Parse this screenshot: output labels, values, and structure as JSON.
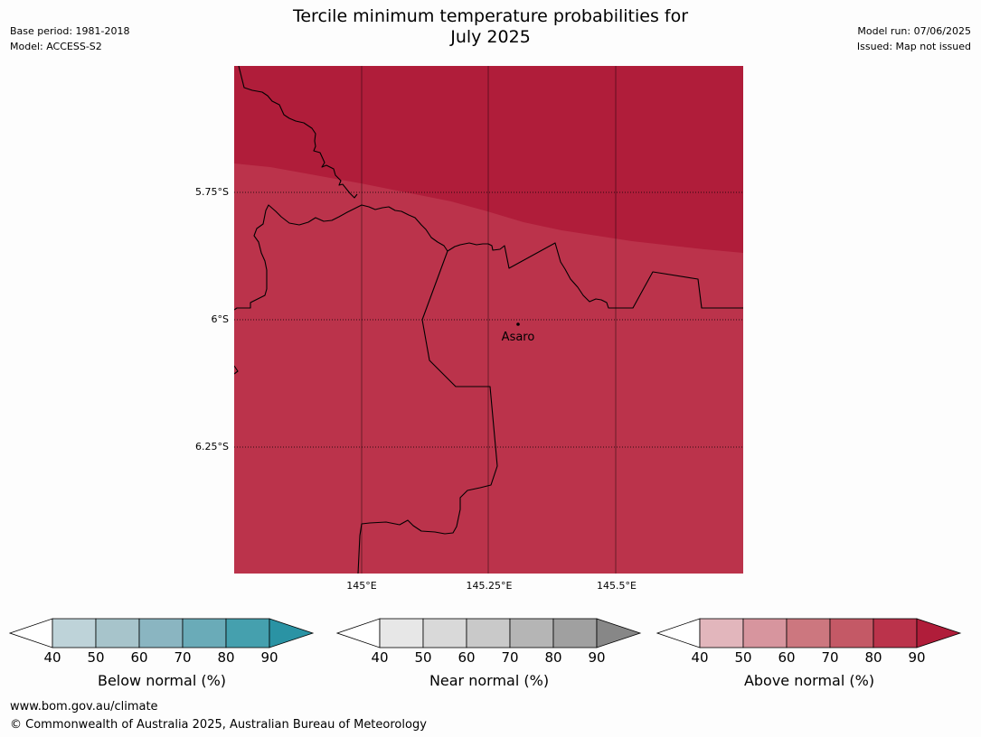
{
  "title": [
    "Tercile minimum temperature probabilities for",
    "July 2025"
  ],
  "meta_left": [
    "Base period: 1981-2018",
    "Model: ACCESS-S2"
  ],
  "meta_right": [
    "Model run: 07/06/2025",
    "Issued: Map not issued"
  ],
  "map": {
    "lat_ticks": [
      "5.75°S",
      "6°S",
      "6.25°S"
    ],
    "lon_ticks": [
      "145°E",
      "145.25°E",
      "145.5°E"
    ],
    "place": "Asaro",
    "colors": {
      "above_80_90": "#b01d3a",
      "above_70_80": "#bb334b",
      "border": "#000000"
    }
  },
  "colorbars": [
    {
      "label": "Below normal (%)",
      "ticks": [
        "40",
        "50",
        "60",
        "70",
        "80",
        "90"
      ],
      "colors": [
        "#bed3d9",
        "#a7c4cb",
        "#8ab5c1",
        "#6aabb8",
        "#45a0ae"
      ],
      "over_color": "#2a93a4"
    },
    {
      "label": "Near normal (%)",
      "ticks": [
        "40",
        "50",
        "60",
        "70",
        "80",
        "90"
      ],
      "colors": [
        "#e7e7e7",
        "#d9d9d9",
        "#c9c9c9",
        "#b5b5b5",
        "#a0a0a0"
      ],
      "over_color": "#878787"
    },
    {
      "label": "Above normal (%)",
      "ticks": [
        "40",
        "50",
        "60",
        "70",
        "80",
        "90"
      ],
      "colors": [
        "#e2b6bc",
        "#d7959e",
        "#cc777f",
        "#c45966",
        "#bb334b"
      ],
      "over_color": "#b01d3a"
    }
  ],
  "footer": {
    "url": "www.bom.gov.au/climate",
    "copyright": "© Commonwealth of Australia 2025, Australian Bureau of Meteorology"
  }
}
